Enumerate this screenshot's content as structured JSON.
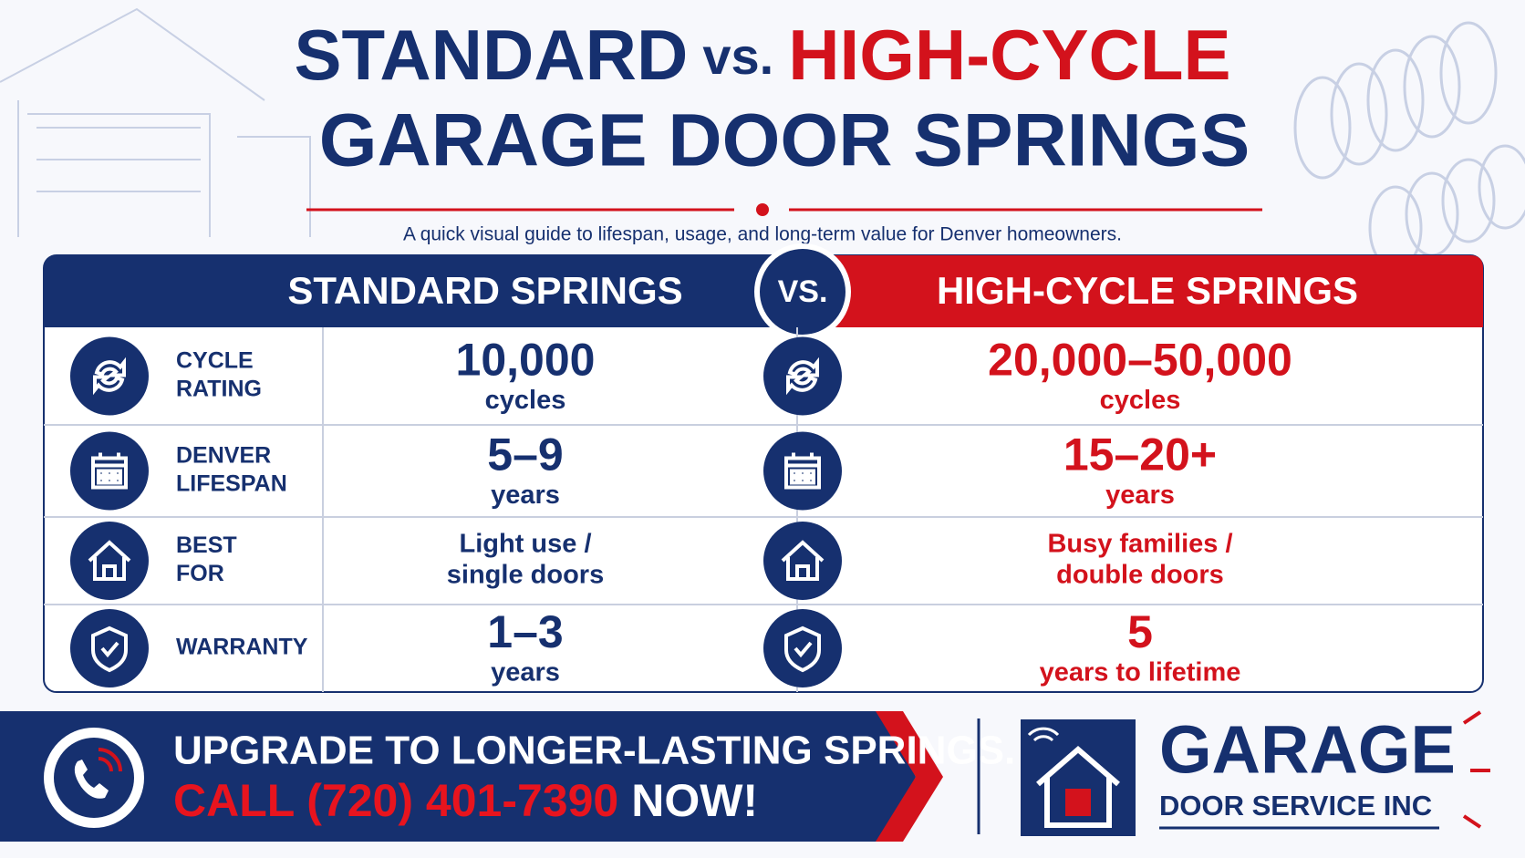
{
  "header": {
    "title_left": "STANDARD",
    "title_vs": "vs.",
    "title_right": "HIGH-CYCLE",
    "title_line2": "GARAGE DOOR SPRINGS",
    "subtitle": "A quick visual guide to lifespan, usage, and long-term value for Denver homeowners."
  },
  "table": {
    "left_heading": "STANDARD SPRINGS",
    "vs": "VS.",
    "right_heading": "HIGH-CYCLE SPRINGS",
    "rows": [
      {
        "label": [
          "CYCLE",
          "RATING"
        ],
        "standard": [
          "10,000",
          "cycles"
        ],
        "high_cycle": [
          "20,000–50,000",
          "cycles"
        ]
      },
      {
        "label": [
          "DENVER",
          "LIFESPAN"
        ],
        "standard": [
          "5–9",
          "years"
        ],
        "high_cycle": [
          "15–20+",
          "years"
        ]
      },
      {
        "label": [
          "BEST",
          "FOR"
        ],
        "standard": [
          "Light use /",
          "single doors"
        ],
        "high_cycle": [
          "Busy families /",
          "double doors"
        ]
      },
      {
        "label": [
          "WARRANTY"
        ],
        "standard": [
          "1–3",
          "years"
        ],
        "high_cycle": [
          "5",
          "years to lifetime"
        ]
      }
    ]
  },
  "cta": {
    "line1": "UPGRADE TO LONGER-LASTING SPRINGS.",
    "call": "CALL (720) 401-7390",
    "now": "NOW!"
  },
  "logo": {
    "name": "GARAGE",
    "tagline": "DOOR SERVICE INC"
  }
}
